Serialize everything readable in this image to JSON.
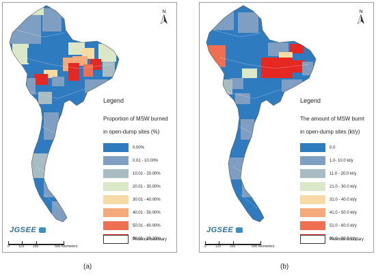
{
  "panels": [
    {
      "caption": "(a)",
      "legend_heading": "Legend",
      "legend_title": "Proportion of MSW burned",
      "legend_subtitle": "in open-dump sites (%)",
      "legend_items": [
        {
          "label": "0.00%",
          "color": "#2f7bbf"
        },
        {
          "label": "0.01 - 10.00%",
          "color": "#7f9fc2"
        },
        {
          "label": "10.01 - 20.00%",
          "color": "#a8bcc4"
        },
        {
          "label": "20.01 - 30.00%",
          "color": "#dbe8c8"
        },
        {
          "label": "30.01 - 40.00%",
          "color": "#f8dba4"
        },
        {
          "label": "40.01 - 50.00%",
          "color": "#f5aa7b"
        },
        {
          "label": "50.01 - 60.00%",
          "color": "#ef6f52"
        },
        {
          "label": "60.01 - 80.20%",
          "color": "#e52822"
        }
      ],
      "boundary_label": "Province boundary"
    },
    {
      "caption": "(b)",
      "legend_heading": "Legend",
      "legend_title": "The amount of MSW burnt",
      "legend_subtitle": "in open-dump sites (kt/y)",
      "legend_items": [
        {
          "label": "0.0",
          "color": "#2f7bbf"
        },
        {
          "label": "1.0- 10.0 kt/y",
          "color": "#7f9fc2"
        },
        {
          "label": "11.0 - 20.0 kt/y",
          "color": "#a8bcc4"
        },
        {
          "label": "21.0 - 30.0 kt/y",
          "color": "#dbe8c8"
        },
        {
          "label": "31.0 - 40.0 kt/y",
          "color": "#f8dba4"
        },
        {
          "label": "41.0 - 50.0 kt/y",
          "color": "#f5aa7b"
        },
        {
          "label": "51.0 - 60.0 kt/y",
          "color": "#ef6f52"
        },
        {
          "label": "61.0 - 90.0 kt/y",
          "color": "#e52822"
        }
      ],
      "boundary_label": "Province boundary"
    }
  ],
  "north_arrow": "N",
  "logo_text": "JGSEE",
  "scale_bar": {
    "ticks": [
      "0",
      "125",
      "250",
      "500 Kilometers"
    ]
  }
}
